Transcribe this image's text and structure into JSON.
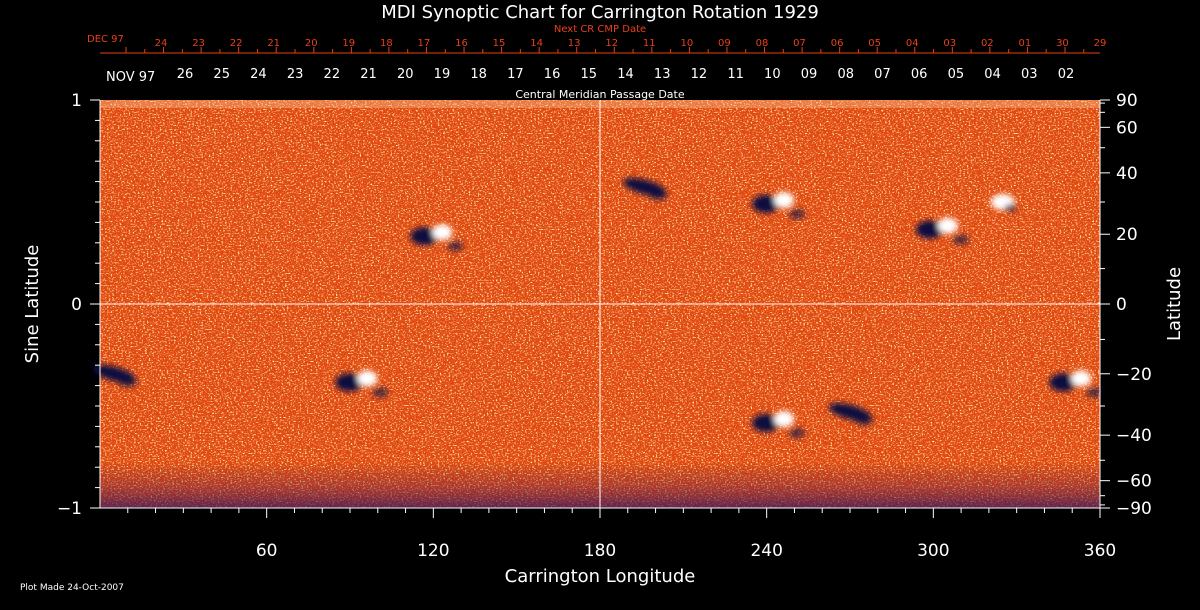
{
  "chart_data": {
    "type": "heatmap",
    "title": "MDI Synoptic Chart for Carrington Rotation 1929",
    "xlabel": "Carrington Longitude",
    "ylabel_left": "Sine Latitude",
    "ylabel_right": "Latitude",
    "xlim": [
      0,
      360
    ],
    "ylim": [
      -1,
      1
    ],
    "x_ticks": [
      "60",
      "120",
      "180",
      "240",
      "300",
      "360"
    ],
    "x_tick_values": [
      60,
      120,
      180,
      240,
      300,
      360
    ],
    "y_ticks_left": [
      "1",
      "0",
      "−1"
    ],
    "y_tick_values_left": [
      1,
      0,
      -1
    ],
    "y_ticks_right": [
      "90",
      "60",
      "40",
      "20",
      "0",
      "−20",
      "−40",
      "−60",
      "−90"
    ],
    "y_tick_degrees_right": [
      90,
      60,
      40,
      20,
      0,
      -20,
      -40,
      -60,
      -90
    ],
    "next_cr_label": "Next CR CMP Date",
    "next_cr_month": "DEC 97",
    "next_cr_dates": [
      "24",
      "23",
      "22",
      "21",
      "20",
      "19",
      "18",
      "17",
      "16",
      "15",
      "14",
      "13",
      "12",
      "11",
      "10",
      "09",
      "08",
      "07",
      "06",
      "05",
      "04",
      "03",
      "02",
      "01",
      "30",
      "29"
    ],
    "cmp_month": "NOV 97",
    "cmp_dates": [
      "26",
      "25",
      "24",
      "23",
      "22",
      "21",
      "20",
      "19",
      "18",
      "17",
      "16",
      "15",
      "14",
      "13",
      "12",
      "11",
      "10",
      "09",
      "08",
      "07",
      "06",
      "05",
      "04",
      "03",
      "02"
    ],
    "cmp_label": "Central Meridian Passage Date",
    "colors": {
      "background": "#000000",
      "field_base": "#e34a10",
      "positive_polarity": "#ffffff",
      "negative_polarity": "#0a0a40",
      "grid": "#ffffff",
      "next_cr_text": "#e8401a"
    },
    "active_regions": [
      {
        "lon": 120,
        "lat_deg": 20,
        "polarity": "mixed"
      },
      {
        "lon": 196,
        "lat_deg": 35,
        "polarity": "negative"
      },
      {
        "lon": 243,
        "lat_deg": 30,
        "polarity": "mixed"
      },
      {
        "lon": 302,
        "lat_deg": 22,
        "polarity": "mixed"
      },
      {
        "lon": 325,
        "lat_deg": 30,
        "polarity": "positive"
      },
      {
        "lon": 93,
        "lat_deg": -22,
        "polarity": "mixed"
      },
      {
        "lon": 350,
        "lat_deg": -22,
        "polarity": "mixed"
      },
      {
        "lon": 5,
        "lat_deg": -20,
        "polarity": "negative"
      },
      {
        "lon": 270,
        "lat_deg": -32,
        "polarity": "negative"
      },
      {
        "lon": 243,
        "lat_deg": -35,
        "polarity": "mixed"
      }
    ]
  },
  "footer": {
    "plot_made": "Plot Made 24-Oct-2007"
  }
}
